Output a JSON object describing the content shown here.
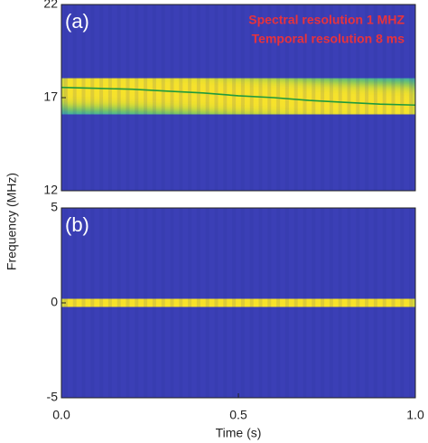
{
  "chart_data": [
    {
      "type": "spectrogram",
      "label": "(a)",
      "annotations": [
        "Spectral resolution 1 MHZ",
        "Temporal resolution 8 ms"
      ],
      "ylabel": "Frequency (MHz)",
      "x": [
        0,
        0.1,
        0.2,
        0.3,
        0.4,
        0.5,
        0.6,
        0.7,
        0.8,
        0.9,
        1.0
      ],
      "values": [
        17.55,
        17.5,
        17.45,
        17.35,
        17.25,
        17.1,
        17.0,
        16.85,
        16.75,
        16.65,
        16.6
      ],
      "line": true,
      "line_color": "#1f9a3c",
      "xlim": [
        0,
        1
      ],
      "ylim": [
        12,
        22
      ],
      "yticks": [
        12,
        17,
        22
      ]
    },
    {
      "type": "spectrogram",
      "label": "(b)",
      "xlabel": "Time (s)",
      "x": [
        0,
        0.1,
        0.2,
        0.3,
        0.4,
        0.5,
        0.6,
        0.7,
        0.8,
        0.9,
        1.0
      ],
      "values": [
        0,
        0.1,
        -0.1,
        0.1,
        0,
        0.1,
        -0.1,
        0,
        0.1,
        -0.1,
        0
      ],
      "line": false,
      "xlim": [
        0,
        1
      ],
      "ylim": [
        -5,
        5
      ],
      "yticks": [
        -5,
        0,
        5
      ],
      "xticks": [
        {
          "value": 0,
          "label": "0.0"
        },
        0.5,
        {
          "value": 1,
          "label": "1.0"
        }
      ]
    }
  ]
}
